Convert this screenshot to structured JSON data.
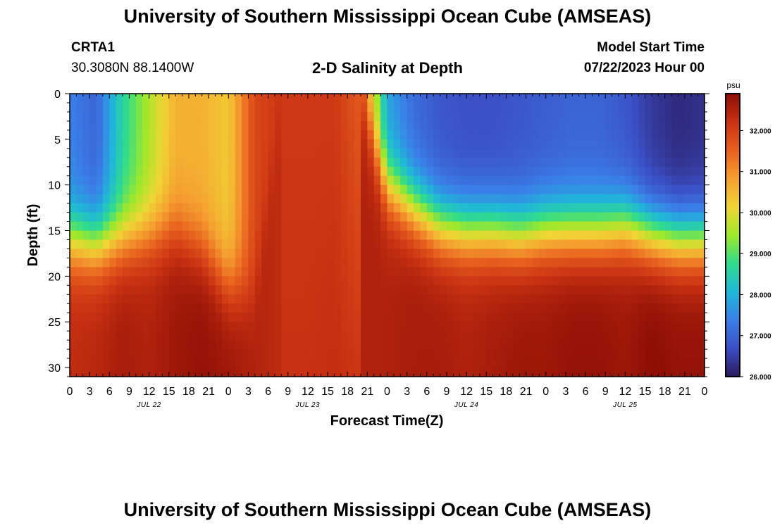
{
  "header": {
    "title": "University of Southern Mississippi Ocean Cube (AMSEAS)",
    "station_id": "CRTA1",
    "station_coords": "30.3080N  88.1400W",
    "subtitle": "2-D Salinity at Depth",
    "model_start_label": "Model Start Time",
    "model_start_value": "07/22/2023 Hour 00"
  },
  "footer": {
    "title": "University of Southern Mississippi Ocean Cube (AMSEAS)"
  },
  "chart_data": {
    "type": "heatmap",
    "title": "2-D Salinity at Depth",
    "xlabel": "Forecast Time(Z)",
    "ylabel": "Depth (ft)",
    "x_range_hours": [
      0,
      96
    ],
    "x_ticks": [
      {
        "hour": 0,
        "label": "0"
      },
      {
        "hour": 3,
        "label": "3"
      },
      {
        "hour": 6,
        "label": "6"
      },
      {
        "hour": 9,
        "label": "9"
      },
      {
        "hour": 12,
        "label": "12"
      },
      {
        "hour": 15,
        "label": "15"
      },
      {
        "hour": 18,
        "label": "18"
      },
      {
        "hour": 21,
        "label": "21"
      },
      {
        "hour": 24,
        "label": "0"
      },
      {
        "hour": 27,
        "label": "3"
      },
      {
        "hour": 30,
        "label": "6"
      },
      {
        "hour": 33,
        "label": "9"
      },
      {
        "hour": 36,
        "label": "12"
      },
      {
        "hour": 39,
        "label": "15"
      },
      {
        "hour": 42,
        "label": "18"
      },
      {
        "hour": 45,
        "label": "21"
      },
      {
        "hour": 48,
        "label": "0"
      },
      {
        "hour": 51,
        "label": "3"
      },
      {
        "hour": 54,
        "label": "6"
      },
      {
        "hour": 57,
        "label": "9"
      },
      {
        "hour": 60,
        "label": "12"
      },
      {
        "hour": 63,
        "label": "15"
      },
      {
        "hour": 66,
        "label": "18"
      },
      {
        "hour": 69,
        "label": "21"
      },
      {
        "hour": 72,
        "label": "0"
      },
      {
        "hour": 75,
        "label": "3"
      },
      {
        "hour": 78,
        "label": "6"
      },
      {
        "hour": 81,
        "label": "9"
      },
      {
        "hour": 84,
        "label": "12"
      },
      {
        "hour": 87,
        "label": "15"
      },
      {
        "hour": 90,
        "label": "18"
      },
      {
        "hour": 93,
        "label": "21"
      },
      {
        "hour": 96,
        "label": "0"
      }
    ],
    "date_labels": [
      {
        "hour": 12,
        "label": "JUL 22"
      },
      {
        "hour": 36,
        "label": "JUL 23"
      },
      {
        "hour": 60,
        "label": "JUL 24"
      },
      {
        "hour": 84,
        "label": "JUL 25"
      }
    ],
    "y_range_ft": [
      0,
      31
    ],
    "y_ticks": [
      0,
      5,
      10,
      15,
      20,
      25,
      30
    ],
    "colorbar": {
      "unit": "psu",
      "min": 26.0,
      "max": 32.9,
      "tick_values": [
        26.0,
        27.0,
        28.0,
        29.0,
        30.0,
        31.0,
        32.0
      ],
      "tick_labels": [
        "26.000",
        "27.000",
        "28.000",
        "29.000",
        "30.000",
        "31.000",
        "32.000"
      ],
      "stops": [
        "#2a1a5e",
        "#3b4fc4",
        "#3a7fe8",
        "#1fb8d8",
        "#2fdc8c",
        "#9fe82a",
        "#f0d534",
        "#f5a030",
        "#e8601e",
        "#c83212",
        "#8c0d04"
      ]
    },
    "depth_levels_ft": [
      0,
      1,
      2,
      3,
      4,
      5,
      6,
      7,
      8,
      9,
      10,
      11,
      12,
      13,
      14,
      15,
      16,
      17,
      18,
      19,
      20,
      21,
      22,
      23,
      24,
      25,
      26,
      27,
      28,
      29,
      30,
      31
    ],
    "profile_hours": [
      0,
      4,
      8,
      12,
      16,
      20,
      24,
      28,
      32,
      36,
      40,
      44,
      48,
      52,
      56,
      60,
      64,
      68,
      72,
      76,
      80,
      84,
      88,
      92,
      96
    ],
    "surface_psu": [
      27.4,
      27.0,
      28.6,
      29.6,
      30.6,
      30.6,
      30.3,
      31.9,
      32.1,
      32.1,
      32.1,
      31.6,
      27.8,
      27.1,
      26.8,
      26.7,
      26.7,
      26.8,
      26.9,
      27.0,
      27.0,
      26.8,
      26.4,
      26.2,
      26.3
    ],
    "halocline_depth_ft": [
      16.0,
      16.5,
      16.0,
      15.5,
      15.0,
      17.0,
      21.0,
      22.0,
      0,
      0,
      0,
      0,
      10.0,
      12.5,
      14.5,
      15.0,
      15.0,
      15.5,
      15.0,
      15.0,
      15.0,
      14.5,
      15.5,
      16.0,
      16.0
    ],
    "bottom_psu": [
      32.3,
      32.4,
      32.6,
      32.5,
      32.7,
      32.8,
      32.7,
      32.5,
      32.3,
      32.3,
      32.4,
      32.5,
      32.5,
      32.6,
      32.6,
      32.5,
      32.6,
      32.7,
      32.7,
      32.8,
      32.8,
      32.7,
      32.9,
      32.8,
      32.8
    ]
  }
}
